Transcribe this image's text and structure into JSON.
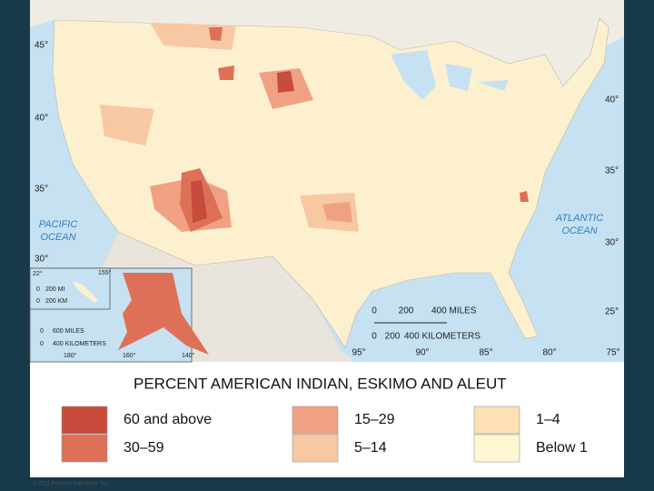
{
  "title": "PERCENT AMERICAN INDIAN, ESKIMO AND ALEUT",
  "legend": [
    {
      "label": "60 and above",
      "color": "#c94b3b"
    },
    {
      "label": "30–59",
      "color": "#dd7056"
    },
    {
      "label": "15–29",
      "color": "#f1a183"
    },
    {
      "label": "5–14",
      "color": "#f8c8a2"
    },
    {
      "label": "1–4",
      "color": "#fde0b4"
    },
    {
      "label": "Below 1",
      "color": "#fff7d2"
    }
  ],
  "ocean_labels": [
    "PACIFIC",
    "OCEAN",
    "ATLANTIC",
    "OCEAN"
  ],
  "latitude_labels": [
    "45°",
    "40°",
    "35°",
    "30°",
    "40°",
    "35°",
    "30°",
    "25°"
  ],
  "longitude_labels": [
    "95°",
    "90°",
    "85°",
    "80°",
    "75°"
  ],
  "scale_bar": [
    "0",
    "200",
    "400 MILES",
    "0",
    "200",
    "400 KILOMETERS"
  ],
  "hawaii_inset": [
    "22°",
    "155°",
    "0",
    "200 MI",
    "0",
    "200 KM"
  ],
  "alaska_inset": [
    "0",
    "600 MILES",
    "0",
    "400 KILOMETERS",
    "180°",
    "160°",
    "140°"
  ],
  "copyright": "© 2011 Pearson Education, Inc."
}
